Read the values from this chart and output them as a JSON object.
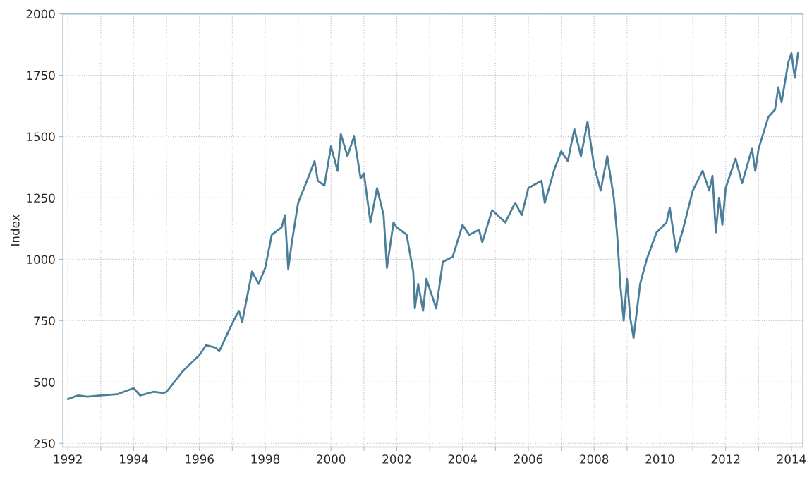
{
  "chart_data": {
    "type": "line",
    "ylabel": "Index",
    "x": [
      1992.0,
      1992.3,
      1992.6,
      1993.0,
      1993.5,
      1994.0,
      1994.2,
      1994.6,
      1994.9,
      1995.0,
      1995.5,
      1996.0,
      1996.2,
      1996.5,
      1996.6,
      1997.0,
      1997.2,
      1997.3,
      1997.6,
      1997.8,
      1998.0,
      1998.2,
      1998.5,
      1998.6,
      1998.7,
      1998.8,
      1999.0,
      1999.3,
      1999.5,
      1999.6,
      1999.8,
      2000.0,
      2000.2,
      2000.3,
      2000.5,
      2000.7,
      2000.9,
      2001.0,
      2001.2,
      2001.4,
      2001.6,
      2001.7,
      2001.9,
      2002.0,
      2002.3,
      2002.5,
      2002.55,
      2002.65,
      2002.8,
      2002.9,
      2003.0,
      2003.2,
      2003.4,
      2003.7,
      2004.0,
      2004.2,
      2004.5,
      2004.6,
      2004.9,
      2005.3,
      2005.6,
      2005.8,
      2006.0,
      2006.4,
      2006.5,
      2006.8,
      2007.0,
      2007.2,
      2007.4,
      2007.6,
      2007.8,
      2008.0,
      2008.2,
      2008.4,
      2008.6,
      2008.7,
      2008.8,
      2008.9,
      2009.0,
      2009.1,
      2009.2,
      2009.4,
      2009.6,
      2009.9,
      2010.2,
      2010.3,
      2010.5,
      2010.7,
      2011.0,
      2011.3,
      2011.5,
      2011.6,
      2011.7,
      2011.8,
      2011.9,
      2012.0,
      2012.3,
      2012.5,
      2012.8,
      2012.9,
      2013.0,
      2013.3,
      2013.5,
      2013.6,
      2013.7,
      2013.9,
      2014.0,
      2014.1,
      2014.2
    ],
    "series": [
      {
        "color": "#4a7f99",
        "values": [
          430,
          445,
          440,
          445,
          450,
          475,
          445,
          460,
          455,
          460,
          545,
          610,
          650,
          640,
          625,
          740,
          790,
          745,
          950,
          900,
          965,
          1100,
          1130,
          1180,
          960,
          1060,
          1230,
          1330,
          1400,
          1320,
          1300,
          1460,
          1360,
          1510,
          1420,
          1500,
          1330,
          1350,
          1150,
          1290,
          1180,
          965,
          1150,
          1130,
          1100,
          950,
          800,
          900,
          790,
          920,
          880,
          800,
          990,
          1010,
          1140,
          1100,
          1120,
          1070,
          1200,
          1150,
          1230,
          1180,
          1290,
          1320,
          1230,
          1370,
          1440,
          1400,
          1530,
          1420,
          1560,
          1380,
          1280,
          1420,
          1250,
          1100,
          890,
          750,
          920,
          760,
          680,
          900,
          1000,
          1110,
          1150,
          1210,
          1030,
          1120,
          1280,
          1360,
          1280,
          1340,
          1110,
          1250,
          1140,
          1290,
          1410,
          1310,
          1450,
          1360,
          1450,
          1580,
          1610,
          1700,
          1640,
          1800,
          1840,
          1740,
          1840
        ]
      }
    ],
    "xlim": [
      1991.85,
      2014.35
    ],
    "xticks": [
      1992,
      {
        "value": 1993,
        "label": null
      },
      1994,
      {
        "value": 1995,
        "label": null
      },
      1996,
      {
        "value": 1997,
        "label": null
      },
      1998,
      {
        "value": 1999,
        "label": null
      },
      2000,
      {
        "value": 2001,
        "label": null
      },
      2002,
      {
        "value": 2003,
        "label": null
      },
      2004,
      {
        "value": 2005,
        "label": null
      },
      2006,
      {
        "value": 2007,
        "label": null
      },
      2008,
      {
        "value": 2009,
        "label": null
      },
      2010,
      {
        "value": 2011,
        "label": null
      },
      2012,
      {
        "value": 2013,
        "label": null
      },
      2014
    ],
    "ylim": [
      235,
      2000
    ],
    "yticks": [
      250,
      500,
      750,
      1000,
      1250,
      1500,
      1750,
      2000
    ],
    "grid": true,
    "line_style": "solid"
  }
}
